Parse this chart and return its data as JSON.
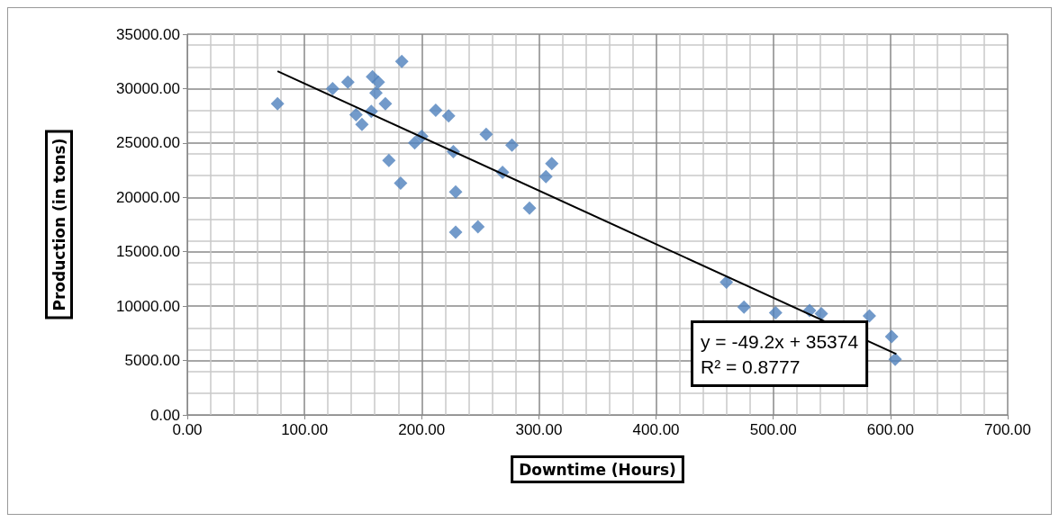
{
  "chart_data": {
    "type": "scatter",
    "xlabel": "Downtime (Hours)",
    "ylabel": "Production (in tons)",
    "marker": "diamond",
    "grid": true,
    "xlim": [
      0,
      700
    ],
    "xticks": [
      {
        "value": 0,
        "label": "0.00"
      },
      {
        "value": 100,
        "label": "100.00"
      },
      {
        "value": 200,
        "label": "200.00"
      },
      {
        "value": 300,
        "label": "300.00"
      },
      {
        "value": 400,
        "label": "400.00"
      },
      {
        "value": 500,
        "label": "500.00"
      },
      {
        "value": 600,
        "label": "600.00"
      },
      {
        "value": 700,
        "label": "700.00"
      }
    ],
    "ylim": [
      0,
      35000
    ],
    "yticks": [
      {
        "value": 0,
        "label": "0.00"
      },
      {
        "value": 5000,
        "label": "5000.00"
      },
      {
        "value": 10000,
        "label": "10000.00"
      },
      {
        "value": 15000,
        "label": "15000.00"
      },
      {
        "value": 20000,
        "label": "20000.00"
      },
      {
        "value": 25000,
        "label": "25000.00"
      },
      {
        "value": 30000,
        "label": "30000.00"
      },
      {
        "value": 35000,
        "label": "35000.00"
      }
    ],
    "annotations": [
      "y = -49.2x + 35374\nR² = 0.8777"
    ],
    "series": [
      {
        "color": "#4f81bd",
        "x": [
          77,
          124,
          137,
          158,
          163,
          161,
          183,
          144,
          149,
          157,
          169,
          172,
          182,
          194,
          200,
          212,
          223,
          227,
          229,
          229,
          248,
          255,
          277,
          269,
          292,
          306,
          311,
          460,
          475,
          502,
          531,
          541,
          582,
          601,
          604
        ],
        "values": [
          28600,
          30000,
          30600,
          31100,
          30600,
          29600,
          32500,
          27600,
          26700,
          27900,
          28600,
          23400,
          21300,
          25000,
          25600,
          28000,
          27500,
          24200,
          20500,
          16800,
          17300,
          25800,
          24800,
          22300,
          19000,
          21900,
          23100,
          12200,
          9900,
          9400,
          9600,
          9300,
          9100,
          7200,
          5100
        ]
      },
      {
        "type": "line",
        "color": "#000000",
        "marker": "none",
        "x": [
          77,
          605
        ],
        "values": [
          31600,
          5600
        ]
      }
    ]
  }
}
